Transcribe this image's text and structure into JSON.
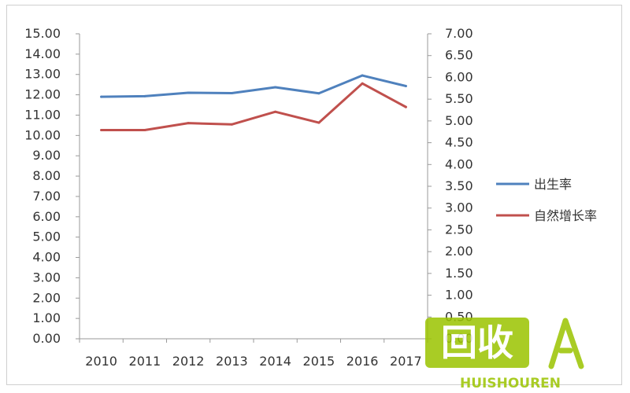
{
  "chart_data": {
    "type": "line",
    "categories": [
      "2010",
      "2011",
      "2012",
      "2013",
      "2014",
      "2015",
      "2016",
      "2017"
    ],
    "y_left": {
      "ylim": [
        0,
        15
      ],
      "ticks": [
        "0.00",
        "1.00",
        "2.00",
        "3.00",
        "4.00",
        "5.00",
        "6.00",
        "7.00",
        "8.00",
        "9.00",
        "10.00",
        "11.00",
        "12.00",
        "13.00",
        "14.00",
        "15.00"
      ]
    },
    "y_right": {
      "ylim": [
        0,
        7
      ],
      "ticks": [
        "0.00",
        "0.50",
        "1.00",
        "1.50",
        "2.00",
        "2.50",
        "3.00",
        "3.50",
        "4.00",
        "4.50",
        "5.00",
        "5.50",
        "6.00",
        "6.50",
        "7.00"
      ]
    },
    "series": [
      {
        "name": "出生率",
        "axis": "left",
        "color": "#4f81bd",
        "values": [
          11.9,
          11.93,
          12.1,
          12.08,
          12.37,
          12.07,
          12.95,
          12.43
        ]
      },
      {
        "name": "自然增长率",
        "axis": "right",
        "color": "#c0504d",
        "values": [
          4.79,
          4.79,
          4.95,
          4.92,
          5.21,
          4.96,
          5.86,
          5.32
        ]
      }
    ],
    "legend_position": "right",
    "grid": false
  },
  "watermark": {
    "text": "回收",
    "subtext": "HUISHOUREN",
    "color": "#9bc400"
  }
}
